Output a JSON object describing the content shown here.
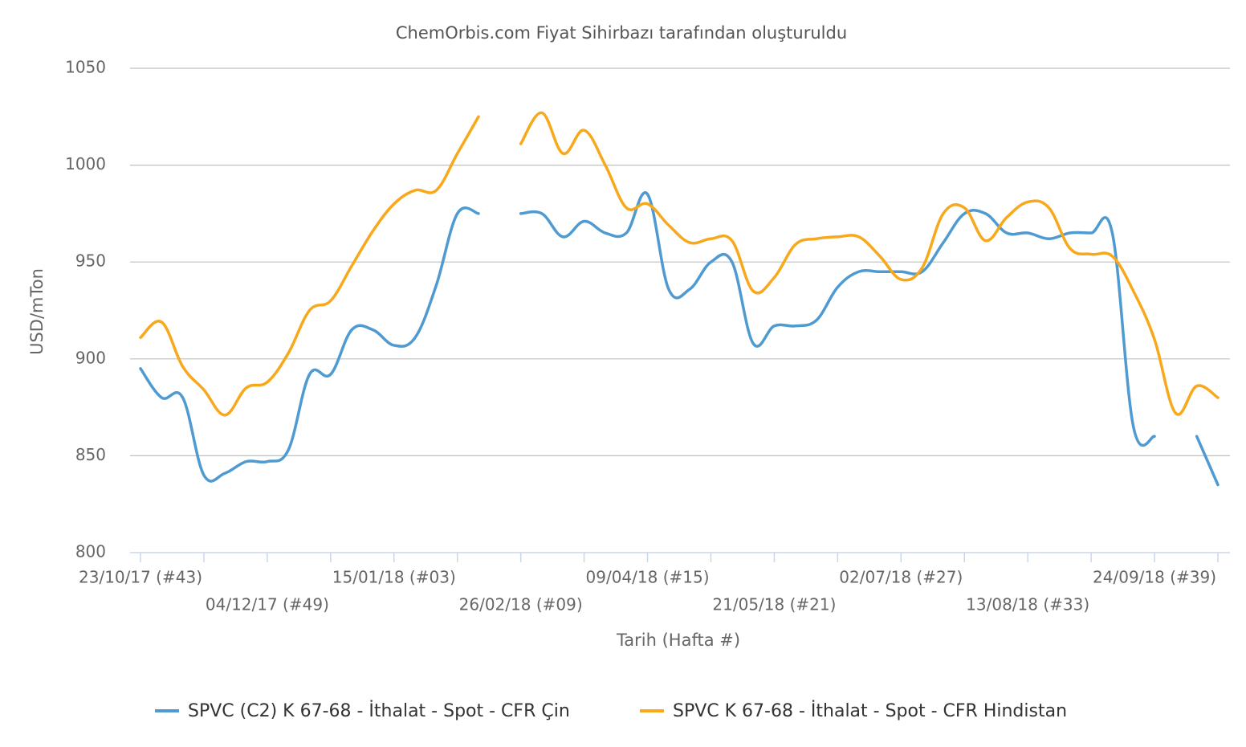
{
  "chart_data": {
    "type": "line",
    "title": "ChemOrbis.com Fiyat Sihirbazı tarafından oluşturuldu",
    "y_label": "USD/mTon",
    "x_label": "Tarih (Hafta #)",
    "categories": [
      "23/10/17 (#43)",
      null,
      null,
      null,
      null,
      null,
      "04/12/17 (#49)",
      null,
      null,
      null,
      null,
      null,
      "15/01/18 (#03)",
      null,
      null,
      null,
      null,
      null,
      "26/02/18 (#09)",
      null,
      null,
      null,
      null,
      null,
      "09/04/18 (#15)",
      null,
      null,
      null,
      null,
      null,
      "21/05/18 (#21)",
      null,
      null,
      null,
      null,
      null,
      "02/07/18 (#27)",
      null,
      null,
      null,
      null,
      null,
      "13/08/18 (#33)",
      null,
      null,
      null,
      null,
      null,
      "24/09/18 (#39)",
      null,
      null,
      null
    ],
    "series": [
      {
        "name": "SPVC (C2) K 67-68 - İthalat - Spot - CFR Çin",
        "color": "#4e9ad1",
        "values": [
          895,
          880,
          880,
          840,
          841,
          847,
          847,
          853,
          892,
          892,
          915,
          915,
          907,
          911,
          938,
          975,
          975,
          null,
          975,
          975,
          963,
          971,
          965,
          965,
          985,
          936,
          936,
          950,
          950,
          908,
          917,
          917,
          920,
          937,
          945,
          945,
          945,
          945,
          960,
          975,
          975,
          965,
          965,
          962,
          965,
          965,
          965,
          865,
          860,
          null,
          860,
          835
        ]
      },
      {
        "name": "SPVC K 67-68 - İthalat - Spot - CFR Hindistan",
        "color": "#f7a81b",
        "values": [
          911,
          919,
          896,
          884,
          871,
          885,
          888,
          903,
          925,
          930,
          948,
          966,
          980,
          987,
          987,
          1006,
          1025,
          null,
          1011,
          1027,
          1006,
          1018,
          1000,
          978,
          980,
          969,
          960,
          962,
          961,
          935,
          942,
          959,
          962,
          963,
          963,
          953,
          941,
          947,
          975,
          978,
          961,
          973,
          981,
          978,
          957,
          954,
          953,
          935,
          910,
          872,
          886,
          880
        ]
      }
    ],
    "ylim": [
      800,
      1050
    ],
    "yticks": [
      800,
      850,
      900,
      950,
      1000,
      1050
    ],
    "grid": true,
    "legend": "bottom"
  }
}
